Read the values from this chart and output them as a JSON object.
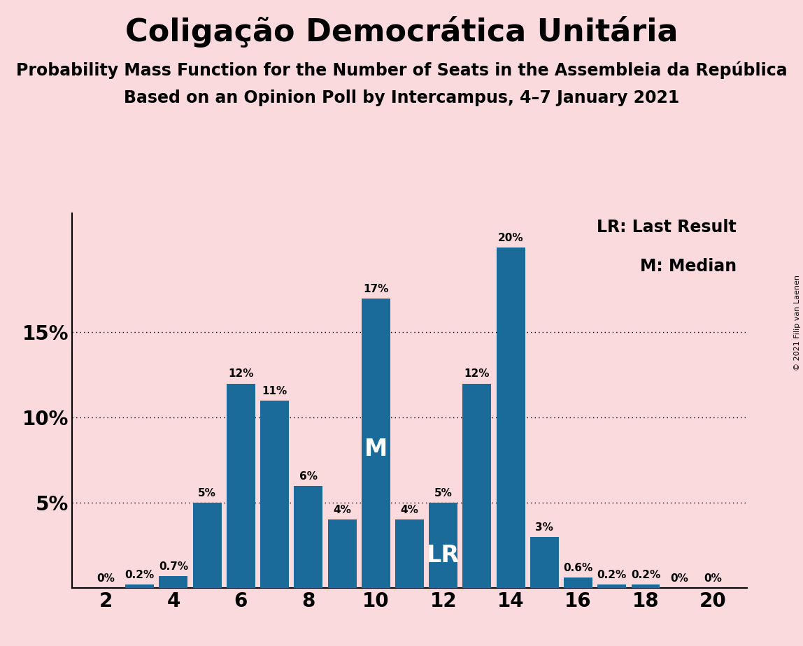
{
  "title": "Coligação Democrática Unitária",
  "subtitle1": "Probability Mass Function for the Number of Seats in the Assembleia da República",
  "subtitle2": "Based on an Opinion Poll by Intercampus, 4–7 January 2021",
  "copyright": "© 2021 Filip van Laenen",
  "seats": [
    2,
    3,
    4,
    5,
    6,
    7,
    8,
    9,
    10,
    11,
    12,
    13,
    14,
    15,
    16,
    17,
    18,
    19,
    20
  ],
  "probabilities": [
    0.0,
    0.2,
    0.7,
    5.0,
    12.0,
    11.0,
    6.0,
    4.0,
    17.0,
    4.0,
    5.0,
    12.0,
    20.0,
    3.0,
    0.6,
    0.2,
    0.2,
    0.0,
    0.0
  ],
  "bar_color": "#1a6b9a",
  "background_color": "#fadadd",
  "median_seat": 10,
  "lr_seat": 12,
  "legend_lr": "LR: Last Result",
  "legend_m": "M: Median",
  "ylim_max": 22,
  "yticks": [
    5,
    10,
    15
  ],
  "xlabel_seats": [
    2,
    4,
    6,
    8,
    10,
    12,
    14,
    16,
    18,
    20
  ],
  "title_fontsize": 32,
  "subtitle_fontsize": 17,
  "tick_fontsize": 20,
  "label_fontsize": 11,
  "legend_fontsize": 17,
  "copyright_fontsize": 8
}
